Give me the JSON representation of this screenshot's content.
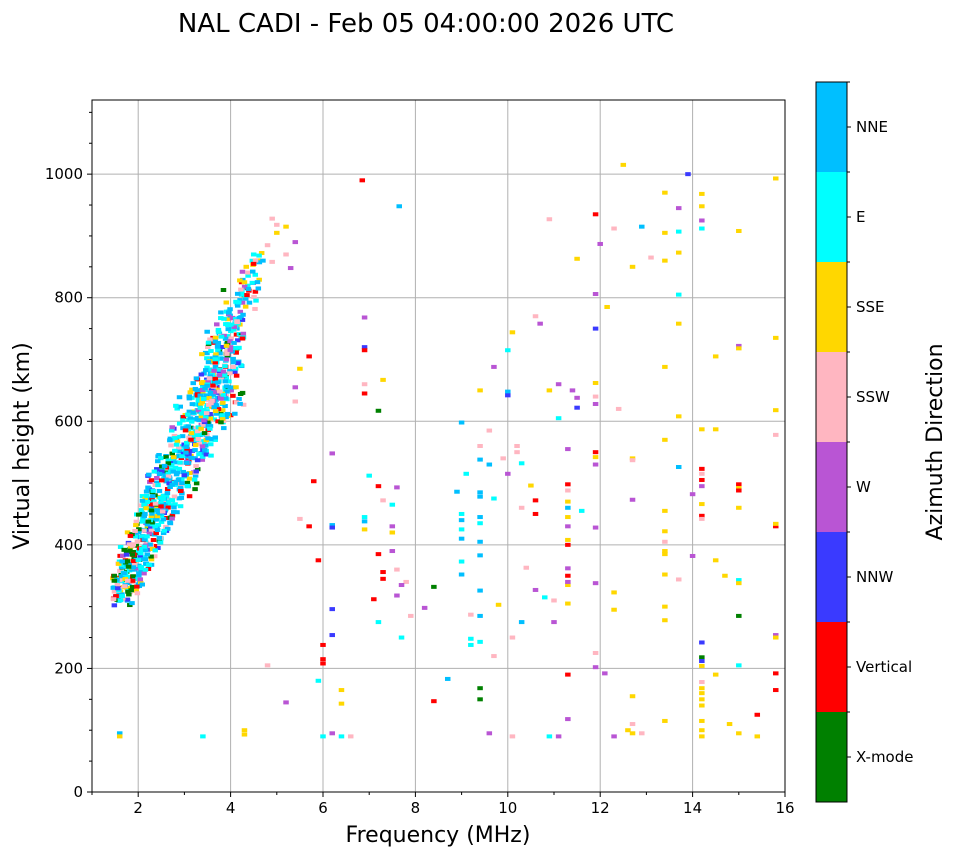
{
  "chart_data": {
    "type": "scatter",
    "title": "NAL CADI - Feb 05 04:00:00 2026 UTC",
    "xlabel": "Frequency (MHz)",
    "ylabel": "Virtual height (km)",
    "xlim": [
      1,
      16
    ],
    "ylim": [
      0,
      1120
    ],
    "xticks": [
      2,
      4,
      6,
      8,
      10,
      12,
      14,
      16
    ],
    "yticks": [
      0,
      200,
      400,
      600,
      800,
      1000
    ],
    "grid": true,
    "colorbar": {
      "label": "Azimuth Direction",
      "categories": [
        {
          "name": "X-mode",
          "color": "#008000"
        },
        {
          "name": "Vertical",
          "color": "#ff0000"
        },
        {
          "name": "NNW",
          "color": "#3a3aff"
        },
        {
          "name": "W",
          "color": "#b955d4"
        },
        {
          "name": "SSW",
          "color": "#ffb6c1"
        },
        {
          "name": "SSE",
          "color": "#ffd700"
        },
        {
          "name": "E",
          "color": "#00ffff"
        },
        {
          "name": "NNE",
          "color": "#00bfff"
        }
      ]
    },
    "cluster": {
      "description_free": true,
      "f_start": 1.5,
      "h_start": 305,
      "f_end": 4.1,
      "h_end": 700,
      "spread_km": 90
    },
    "points": [
      [
        6.85,
        990,
        "Vertical"
      ],
      [
        7.65,
        948,
        "NNE"
      ],
      [
        12.5,
        1015,
        "SSE"
      ],
      [
        13.4,
        970,
        "SSE"
      ],
      [
        13.9,
        1000,
        "NNW"
      ],
      [
        14.2,
        968,
        "SSE"
      ],
      [
        14.2,
        948,
        "SSE"
      ],
      [
        14.2,
        925,
        "W"
      ],
      [
        14.2,
        912,
        "E"
      ],
      [
        15.0,
        908,
        "SSE"
      ],
      [
        15.8,
        993,
        "SSE"
      ],
      [
        13.7,
        945,
        "W"
      ],
      [
        13.4,
        905,
        "SSE"
      ],
      [
        13.7,
        907,
        "E"
      ],
      [
        12.9,
        915,
        "NNE"
      ],
      [
        12.3,
        912,
        "SSW"
      ],
      [
        11.9,
        935,
        "Vertical"
      ],
      [
        10.9,
        927,
        "SSW"
      ],
      [
        12.0,
        887,
        "W"
      ],
      [
        13.1,
        865,
        "SSW"
      ],
      [
        12.7,
        850,
        "SSE"
      ],
      [
        13.4,
        860,
        "SSE"
      ],
      [
        13.7,
        873,
        "SSE"
      ],
      [
        11.5,
        863,
        "SSE"
      ],
      [
        13.7,
        805,
        "E"
      ],
      [
        11.9,
        806,
        "W"
      ],
      [
        12.15,
        785,
        "SSE"
      ],
      [
        13.7,
        758,
        "SSE"
      ],
      [
        11.9,
        750,
        "NNW"
      ],
      [
        10.6,
        770,
        "SSW"
      ],
      [
        10.7,
        758,
        "W"
      ],
      [
        10.1,
        744,
        "SSE"
      ],
      [
        15.0,
        722,
        "W"
      ],
      [
        15.0,
        718,
        "SSE"
      ],
      [
        15.8,
        735,
        "SSE"
      ],
      [
        14.5,
        705,
        "SSE"
      ],
      [
        13.4,
        688,
        "SSE"
      ],
      [
        11.9,
        662,
        "SSE"
      ],
      [
        11.9,
        640,
        "SSW"
      ],
      [
        11.9,
        628,
        "W"
      ],
      [
        10.0,
        715,
        "E"
      ],
      [
        9.7,
        688,
        "W"
      ],
      [
        10.0,
        648,
        "NNE"
      ],
      [
        10.0,
        642,
        "NNW"
      ],
      [
        9.4,
        650,
        "SSE"
      ],
      [
        10.9,
        650,
        "SSE"
      ],
      [
        11.1,
        660,
        "W"
      ],
      [
        11.4,
        650,
        "W"
      ],
      [
        11.5,
        638,
        "W"
      ],
      [
        11.5,
        622,
        "NNW"
      ],
      [
        11.1,
        605,
        "E"
      ],
      [
        12.4,
        620,
        "SSW"
      ],
      [
        13.7,
        608,
        "SSE"
      ],
      [
        14.2,
        587,
        "SSE"
      ],
      [
        14.5,
        587,
        "SSE"
      ],
      [
        15.8,
        618,
        "SSE"
      ],
      [
        15.8,
        578,
        "SSW"
      ],
      [
        13.4,
        570,
        "SSE"
      ],
      [
        13.7,
        526,
        "NNE"
      ],
      [
        14.2,
        523,
        "Vertical"
      ],
      [
        14.2,
        515,
        "SSW"
      ],
      [
        14.2,
        505,
        "Vertical"
      ],
      [
        14.2,
        495,
        "W"
      ],
      [
        14.0,
        482,
        "W"
      ],
      [
        15.0,
        498,
        "Vertical"
      ],
      [
        15.0,
        492,
        "SSE"
      ],
      [
        15.0,
        488,
        "Vertical"
      ],
      [
        15.0,
        460,
        "SSE"
      ],
      [
        14.2,
        466,
        "SSE"
      ],
      [
        14.2,
        447,
        "Vertical"
      ],
      [
        14.2,
        442,
        "SSW"
      ],
      [
        15.8,
        430,
        "Vertical"
      ],
      [
        15.8,
        434,
        "SSE"
      ],
      [
        12.7,
        540,
        "SSE"
      ],
      [
        12.7,
        537,
        "SSW"
      ],
      [
        11.9,
        550,
        "Vertical"
      ],
      [
        11.9,
        542,
        "SSE"
      ],
      [
        11.9,
        530,
        "W"
      ],
      [
        11.3,
        555,
        "W"
      ],
      [
        10.2,
        560,
        "SSW"
      ],
      [
        10.2,
        550,
        "SSW"
      ],
      [
        9.9,
        540,
        "SSW"
      ],
      [
        9.6,
        530,
        "NNE"
      ],
      [
        10.3,
        532,
        "E"
      ],
      [
        10.0,
        515,
        "W"
      ],
      [
        9.0,
        598,
        "NNE"
      ],
      [
        9.6,
        585,
        "SSW"
      ],
      [
        9.4,
        560,
        "SSW"
      ],
      [
        9.4,
        538,
        "NNE"
      ],
      [
        9.1,
        515,
        "E"
      ],
      [
        8.9,
        486,
        "NNE"
      ],
      [
        9.4,
        485,
        "NNE"
      ],
      [
        9.4,
        478,
        "NNE"
      ],
      [
        9.7,
        475,
        "E"
      ],
      [
        9.0,
        450,
        "E"
      ],
      [
        9.0,
        440,
        "NNE"
      ],
      [
        9.4,
        445,
        "NNE"
      ],
      [
        9.4,
        435,
        "E"
      ],
      [
        9.0,
        425,
        "E"
      ],
      [
        9.0,
        410,
        "NNE"
      ],
      [
        9.4,
        405,
        "NNE"
      ],
      [
        9.4,
        383,
        "NNE"
      ],
      [
        9.0,
        373,
        "E"
      ],
      [
        9.0,
        352,
        "NNE"
      ],
      [
        9.4,
        326,
        "NNE"
      ],
      [
        9.4,
        285,
        "NNE"
      ],
      [
        9.2,
        287,
        "SSW"
      ],
      [
        9.8,
        303,
        "SSE"
      ],
      [
        9.2,
        248,
        "E"
      ],
      [
        9.2,
        238,
        "E"
      ],
      [
        9.4,
        243,
        "E"
      ],
      [
        9.7,
        220,
        "SSW"
      ],
      [
        10.1,
        250,
        "SSW"
      ],
      [
        10.3,
        275,
        "NNE"
      ],
      [
        10.6,
        327,
        "W"
      ],
      [
        10.8,
        315,
        "E"
      ],
      [
        11.0,
        310,
        "SSW"
      ],
      [
        11.0,
        275,
        "W"
      ],
      [
        11.3,
        305,
        "SSE"
      ],
      [
        11.3,
        335,
        "SSE"
      ],
      [
        11.3,
        340,
        "W"
      ],
      [
        11.3,
        350,
        "Vertical"
      ],
      [
        11.3,
        362,
        "W"
      ],
      [
        11.3,
        400,
        "Vertical"
      ],
      [
        11.3,
        408,
        "SSE"
      ],
      [
        11.3,
        430,
        "W"
      ],
      [
        11.3,
        445,
        "SSE"
      ],
      [
        11.3,
        460,
        "NNE"
      ],
      [
        11.3,
        470,
        "SSE"
      ],
      [
        11.3,
        488,
        "SSW"
      ],
      [
        11.3,
        498,
        "Vertical"
      ],
      [
        11.6,
        455,
        "E"
      ],
      [
        11.9,
        428,
        "W"
      ],
      [
        10.5,
        496,
        "SSE"
      ],
      [
        10.6,
        472,
        "Vertical"
      ],
      [
        10.3,
        460,
        "SSW"
      ],
      [
        10.6,
        450,
        "Vertical"
      ],
      [
        10.4,
        363,
        "SSW"
      ],
      [
        11.9,
        338,
        "W"
      ],
      [
        12.3,
        323,
        "SSE"
      ],
      [
        12.3,
        295,
        "SSE"
      ],
      [
        13.4,
        300,
        "SSE"
      ],
      [
        13.4,
        278,
        "SSE"
      ],
      [
        14.2,
        242,
        "NNW"
      ],
      [
        13.7,
        344,
        "SSW"
      ],
      [
        13.4,
        352,
        "SSE"
      ],
      [
        14.0,
        382,
        "W"
      ],
      [
        14.5,
        375,
        "SSE"
      ],
      [
        14.7,
        350,
        "SSE"
      ],
      [
        15.0,
        343,
        "E"
      ],
      [
        15.0,
        338,
        "SSE"
      ],
      [
        13.4,
        390,
        "SSE"
      ],
      [
        13.4,
        385,
        "SSE"
      ],
      [
        13.4,
        422,
        "SSE"
      ],
      [
        13.4,
        455,
        "SSE"
      ],
      [
        13.4,
        405,
        "SSW"
      ],
      [
        12.7,
        473,
        "W"
      ],
      [
        15.0,
        285,
        "X-mode"
      ],
      [
        15.8,
        254,
        "W"
      ],
      [
        15.8,
        250,
        "SSE"
      ],
      [
        14.2,
        218,
        "X-mode"
      ],
      [
        14.2,
        212,
        "NNW"
      ],
      [
        14.2,
        204,
        "SSE"
      ],
      [
        15.0,
        205,
        "E"
      ],
      [
        15.8,
        192,
        "Vertical"
      ],
      [
        15.8,
        165,
        "Vertical"
      ],
      [
        14.5,
        190,
        "SSE"
      ],
      [
        14.2,
        178,
        "SSW"
      ],
      [
        14.2,
        168,
        "SSE"
      ],
      [
        14.2,
        160,
        "SSE"
      ],
      [
        14.2,
        150,
        "SSE"
      ],
      [
        14.2,
        140,
        "SSE"
      ],
      [
        15.4,
        125,
        "Vertical"
      ],
      [
        14.2,
        115,
        "SSE"
      ],
      [
        14.2,
        100,
        "SSE"
      ],
      [
        14.2,
        90,
        "SSE"
      ],
      [
        14.8,
        110,
        "SSE"
      ],
      [
        15.0,
        95,
        "SSE"
      ],
      [
        15.4,
        90,
        "SSE"
      ],
      [
        13.4,
        115,
        "SSE"
      ],
      [
        12.7,
        110,
        "SSW"
      ],
      [
        12.3,
        90,
        "W"
      ],
      [
        12.7,
        95,
        "SSE"
      ],
      [
        12.6,
        100,
        "SSE"
      ],
      [
        12.9,
        95,
        "SSW"
      ],
      [
        12.7,
        155,
        "SSE"
      ],
      [
        12.1,
        192,
        "W"
      ],
      [
        11.9,
        202,
        "W"
      ],
      [
        11.9,
        225,
        "SSW"
      ],
      [
        11.3,
        190,
        "Vertical"
      ],
      [
        11.3,
        118,
        "W"
      ],
      [
        10.9,
        90,
        "E"
      ],
      [
        11.1,
        90,
        "W"
      ],
      [
        10.1,
        90,
        "SSW"
      ],
      [
        9.6,
        95,
        "W"
      ],
      [
        9.4,
        168,
        "X-mode"
      ],
      [
        9.4,
        150,
        "X-mode"
      ],
      [
        8.4,
        147,
        "Vertical"
      ],
      [
        8.7,
        183,
        "NNE"
      ],
      [
        8.4,
        332,
        "X-mode"
      ],
      [
        8.2,
        298,
        "W"
      ],
      [
        7.9,
        285,
        "SSW"
      ],
      [
        7.8,
        340,
        "SSW"
      ],
      [
        7.7,
        335,
        "W"
      ],
      [
        7.6,
        318,
        "W"
      ],
      [
        7.7,
        250,
        "E"
      ],
      [
        7.6,
        360,
        "SSW"
      ],
      [
        7.5,
        390,
        "W"
      ],
      [
        7.5,
        420,
        "SSE"
      ],
      [
        7.5,
        430,
        "W"
      ],
      [
        7.5,
        465,
        "E"
      ],
      [
        7.6,
        493,
        "W"
      ],
      [
        7.2,
        495,
        "Vertical"
      ],
      [
        7.3,
        472,
        "SSW"
      ],
      [
        7.0,
        512,
        "E"
      ],
      [
        7.2,
        617,
        "X-mode"
      ],
      [
        7.3,
        667,
        "SSE"
      ],
      [
        6.9,
        645,
        "Vertical"
      ],
      [
        6.9,
        720,
        "NNW"
      ],
      [
        6.9,
        715,
        "Vertical"
      ],
      [
        6.9,
        768,
        "W"
      ],
      [
        6.9,
        660,
        "SSW"
      ],
      [
        7.2,
        385,
        "Vertical"
      ],
      [
        7.3,
        356,
        "Vertical"
      ],
      [
        7.3,
        345,
        "Vertical"
      ],
      [
        7.1,
        312,
        "Vertical"
      ],
      [
        7.2,
        275,
        "E"
      ],
      [
        6.9,
        425,
        "SSE"
      ],
      [
        6.9,
        438,
        "NNE"
      ],
      [
        6.9,
        445,
        "E"
      ],
      [
        6.2,
        548,
        "W"
      ],
      [
        6.2,
        432,
        "NNE"
      ],
      [
        6.2,
        428,
        "NNW"
      ],
      [
        5.9,
        375,
        "Vertical"
      ],
      [
        5.8,
        503,
        "Vertical"
      ],
      [
        5.7,
        430,
        "Vertical"
      ],
      [
        5.5,
        442,
        "SSW"
      ],
      [
        6.2,
        296,
        "NNW"
      ],
      [
        6.2,
        254,
        "NNW"
      ],
      [
        6.0,
        238,
        "Vertical"
      ],
      [
        6.0,
        215,
        "Vertical"
      ],
      [
        6.0,
        208,
        "Vertical"
      ],
      [
        5.9,
        180,
        "E"
      ],
      [
        6.4,
        165,
        "SSE"
      ],
      [
        6.4,
        143,
        "SSE"
      ],
      [
        6.2,
        95,
        "W"
      ],
      [
        6.4,
        90,
        "E"
      ],
      [
        6.0,
        90,
        "E"
      ],
      [
        6.6,
        90,
        "SSW"
      ],
      [
        5.2,
        145,
        "W"
      ],
      [
        4.8,
        205,
        "SSW"
      ],
      [
        4.3,
        100,
        "SSE"
      ],
      [
        4.3,
        93,
        "SSE"
      ],
      [
        3.4,
        90,
        "E"
      ],
      [
        1.6,
        95,
        "NNE"
      ],
      [
        1.6,
        90,
        "SSE"
      ],
      [
        5.7,
        705,
        "Vertical"
      ],
      [
        5.5,
        685,
        "SSE"
      ],
      [
        5.4,
        655,
        "W"
      ],
      [
        5.4,
        632,
        "SSW"
      ],
      [
        5.4,
        890,
        "W"
      ],
      [
        5.3,
        848,
        "W"
      ],
      [
        5.2,
        915,
        "SSE"
      ],
      [
        5.2,
        870,
        "SSW"
      ],
      [
        5.0,
        918,
        "SSW"
      ],
      [
        4.9,
        928,
        "SSW"
      ],
      [
        5.0,
        905,
        "SSE"
      ],
      [
        4.8,
        885,
        "SSW"
      ],
      [
        4.6,
        815,
        "NNE"
      ],
      [
        4.7,
        860,
        "NNE"
      ],
      [
        4.9,
        858,
        "SSW"
      ],
      [
        4.5,
        870,
        "E"
      ],
      [
        4.3,
        825,
        "SSE"
      ],
      [
        4.2,
        828,
        "SSE"
      ]
    ]
  }
}
